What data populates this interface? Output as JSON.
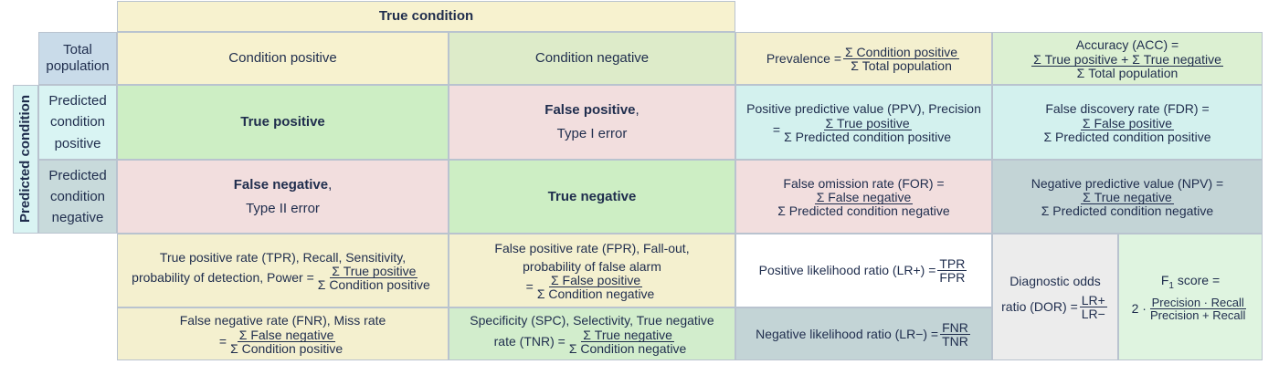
{
  "header": {
    "true_condition": "True condition"
  },
  "total_population": "Total population",
  "predicted_condition": "Predicted condition",
  "columns": {
    "condition_positive": "Condition positive",
    "condition_negative": "Condition negative"
  },
  "rows": {
    "predicted_positive": "Predicted condition positive",
    "predicted_negative": "Predicted condition negative"
  },
  "cells": {
    "tp": "True positive",
    "fp_bold": "False positive",
    "fp_rest": "Type I error",
    "fn_bold": "False negative",
    "fn_rest": "Type II error",
    "tn": "True negative",
    "comma": ","
  },
  "prevalence": {
    "label": "Prevalence =",
    "num": "Σ Condition positive",
    "den": "Σ Total population"
  },
  "accuracy": {
    "label": "Accuracy (ACC) =",
    "num": "Σ True positive + Σ True negative",
    "den": "Σ Total population"
  },
  "ppv": {
    "label": "Positive predictive value (PPV), Precision",
    "eq": "=",
    "num": "Σ True positive",
    "den": "Σ Predicted condition positive"
  },
  "fdr": {
    "label": "False discovery rate (FDR) =",
    "num": "Σ False positive",
    "den": "Σ Predicted condition positive"
  },
  "for": {
    "label": "False omission rate (FOR) =",
    "num": "Σ False negative",
    "den": "Σ Predicted condition negative"
  },
  "npv": {
    "label": "Negative predictive value (NPV) =",
    "num": "Σ True negative",
    "den": "Σ Predicted condition negative"
  },
  "tpr": {
    "line1": "True positive rate (TPR), Recall, Sensitivity,",
    "line2": "probability of detection, Power =",
    "num": "Σ True positive",
    "den": "Σ Condition positive"
  },
  "fpr": {
    "line1": "False positive rate (FPR), Fall-out,",
    "line2": "probability of false alarm",
    "eq": "=",
    "num": "Σ False positive",
    "den": "Σ Condition negative"
  },
  "fnr": {
    "line1": "False negative rate (FNR), Miss rate",
    "eq": "=",
    "num": "Σ False negative",
    "den": "Σ Condition positive"
  },
  "tnr": {
    "line1": "Specificity (SPC), Selectivity, True negative",
    "line2": "rate (TNR) =",
    "num": "Σ True negative",
    "den": "Σ Condition negative"
  },
  "lrp": {
    "label": "Positive likelihood ratio (LR+) =",
    "num": "TPR",
    "den": "FPR"
  },
  "lrn": {
    "label": "Negative likelihood ratio (LR−) =",
    "num": "FNR",
    "den": "TNR"
  },
  "dor": {
    "line1": "Diagnostic odds",
    "line2": "ratio (DOR) =",
    "num": "LR+",
    "den": "LR−"
  },
  "f1": {
    "label_pre": "F",
    "label_sub": "1",
    "label_post": " score =",
    "mult": "2 ·",
    "num": "Precision · Recall",
    "den": "Precision + Recall"
  }
}
